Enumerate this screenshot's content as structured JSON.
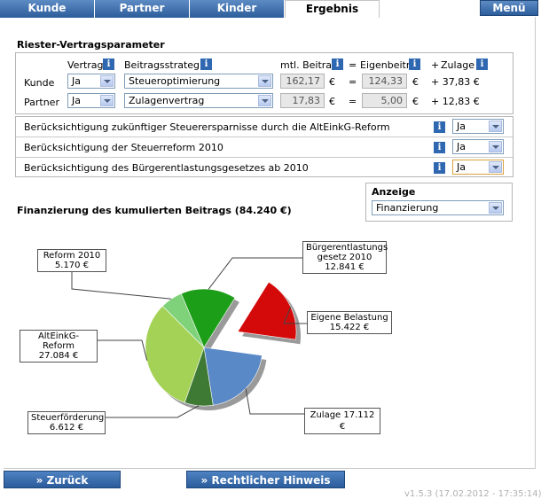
{
  "tabs": [
    {
      "label": "Kunde"
    },
    {
      "label": "Partner"
    },
    {
      "label": "Kinder"
    },
    {
      "label": "Ergebnis",
      "active": true
    }
  ],
  "menu_label": "Menü",
  "params": {
    "title": "Riester-Vertragsparameter",
    "col_vertrag": "Vertrag",
    "col_strategie": "Beitragsstrategie",
    "col_beitrag": "mtl. Beitrag",
    "col_eq": "=",
    "col_eigen": "Eigenbeitr.",
    "col_plus": "+",
    "col_zulage": "Zulage",
    "euro": "€",
    "rows": [
      {
        "label": "Kunde",
        "vertrag": "Ja",
        "strategie": "Steueroptimierung",
        "beitrag": "162,17",
        "eq": "=",
        "eigen": "124,33",
        "zulage": "+ 37,83 €"
      },
      {
        "label": "Partner",
        "vertrag": "Ja",
        "strategie": "Zulagenvertrag",
        "beitrag": "17,83",
        "eq": "=",
        "eigen": "5,00",
        "zulage": "+ 12,83 €"
      }
    ]
  },
  "options": [
    {
      "label": "Berücksichtigung zukünftiger Steuerersparnisse durch die AltEinkG-Reform",
      "value": "Ja"
    },
    {
      "label": "Berücksichtigung der Steuerreform 2010",
      "value": "Ja"
    },
    {
      "label": "Berücksichtigung des Bürgerentlastungsgesetzes ab 2010",
      "value": "Ja"
    }
  ],
  "anzeige": {
    "label": "Anzeige",
    "value": "Finanzierung"
  },
  "chart_title": "Finanzierung des kumulierten Beitrags (84.240 €)",
  "chart_data": {
    "type": "pie",
    "title": "Finanzierung des kumulierten Beitrags (84.240 €)",
    "slices": [
      {
        "name": "Reform 2010",
        "value": 5170,
        "label": "5.170 €",
        "color": "#7fd17a"
      },
      {
        "name": "Bürgerentlastungsgesetz 2010",
        "value": 12841,
        "label": "12.841 €",
        "color": "#1d9e19"
      },
      {
        "name": "Eigene Belastung",
        "value": 15422,
        "label": "15.422 €",
        "color": "#d40a0a",
        "exploded": true
      },
      {
        "name": "Zulage",
        "value": 17112,
        "label": "Zulage 17.112 €",
        "color": "#5a89c8"
      },
      {
        "name": "Steuerförderung",
        "value": 6612,
        "label": "6.612 €",
        "color": "#3f7a35"
      },
      {
        "name": "AltEinkG-Reform",
        "value": 27084,
        "label": "27.084 €",
        "color": "#a4d257"
      }
    ]
  },
  "callouts": {
    "reform": {
      "name": "Reform 2010",
      "value": "5.170 €"
    },
    "buerger": {
      "name1": "Bürgerentlastungs",
      "name2": "gesetz 2010",
      "value": "12.841 €"
    },
    "eigen": {
      "name": "Eigene Belastung",
      "value": "15.422 €"
    },
    "alteinkg": {
      "name": "AltEinkG-Reform",
      "value": "27.084 €"
    },
    "steuer": {
      "name": "Steuerförderung",
      "value": "6.612 €"
    },
    "zulage": {
      "text": "Zulage 17.112 €"
    }
  },
  "buttons": {
    "back": "Zurück",
    "legal": "Rechtlicher Hinweis",
    "glyph": "»"
  },
  "version": "v1.5.3 (17.02.2012 - 17:35:14)"
}
